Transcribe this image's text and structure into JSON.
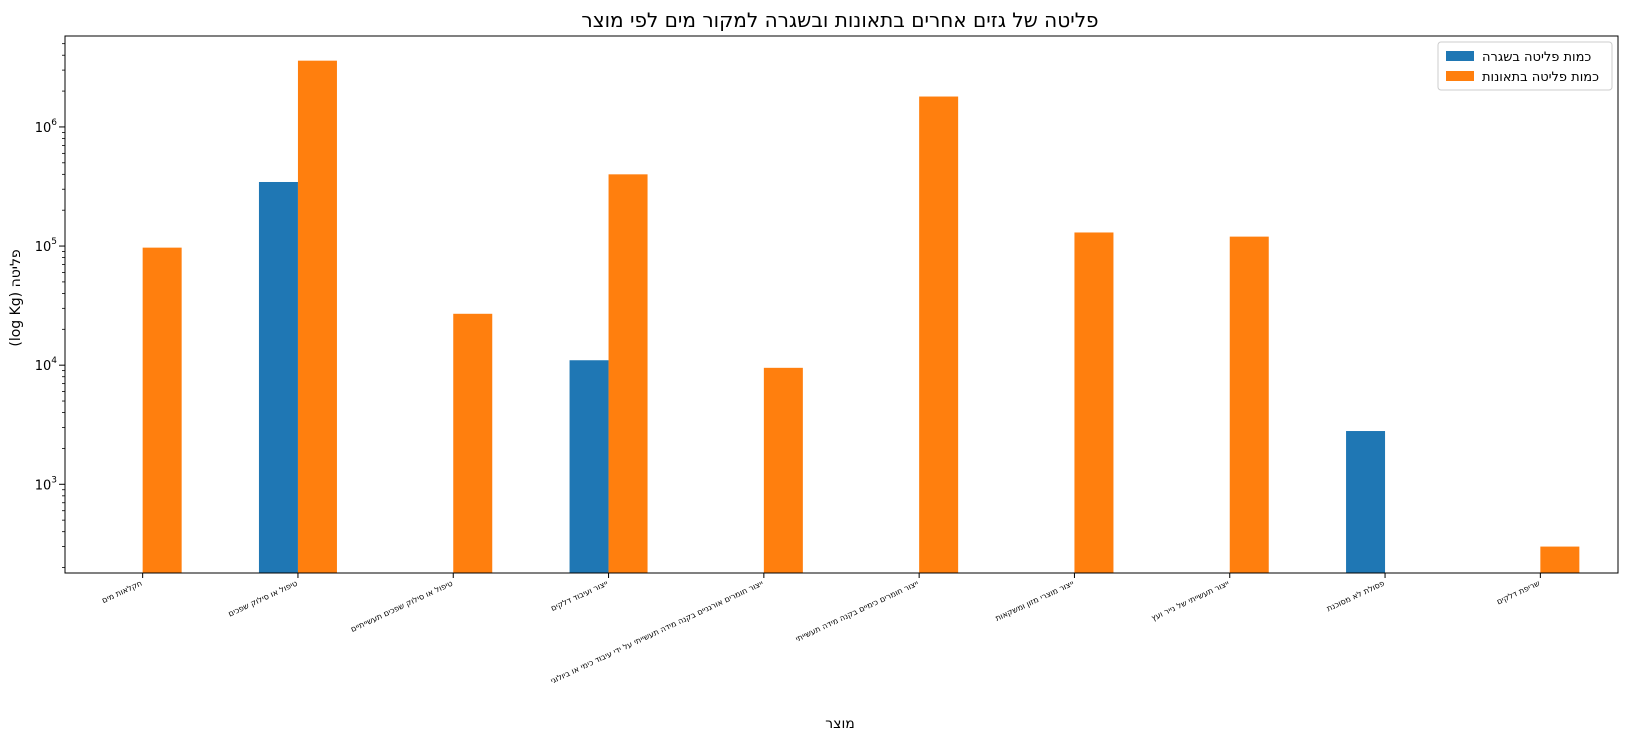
{
  "chart_data": {
    "type": "bar",
    "title": "פליטה של גזים אחרים בתאונות ובשגרה למקור מים לפי מוצר",
    "xlabel": "מוצר",
    "ylabel": "פליטה (log Kg)",
    "yscale": "log",
    "ylim": [
      180,
      5800000
    ],
    "y_ticks": [
      {
        "value": 1000,
        "base": "10",
        "exp": "3"
      },
      {
        "value": 10000,
        "base": "10",
        "exp": "4"
      },
      {
        "value": 100000,
        "base": "10",
        "exp": "5"
      },
      {
        "value": 1000000,
        "base": "10",
        "exp": "6"
      }
    ],
    "legend_position": "top-right",
    "categories": [
      "חקלאות מים",
      "טיפול או סילוק שפכים",
      "טיפול או סילוק שפכים תעשייתיים",
      "ייצור ועיבוד דלקים",
      "ייצור חומרים אורגניים בקנה מידה תעשייתי על ידי עיבוד כימי או ביולוגי",
      "ייצור חומרים כימיים בקנה מידה תעשייתי",
      "ייצור מוצרי מזון ומשקאות",
      "ייצור תעשייתי של נייר ועץ",
      "פסולת לא מסוכנת",
      "שריפת דלקים"
    ],
    "series": [
      {
        "name": "כמות פליטה בשגרה",
        "color": "#1f77b4",
        "values": [
          null,
          345000,
          null,
          11000,
          null,
          null,
          null,
          null,
          2800,
          null
        ]
      },
      {
        "name": "כמות פליטה בתאונות",
        "color": "#ff7f0e",
        "values": [
          97000,
          3600000,
          27000,
          400000,
          9500,
          1800000,
          130000,
          120000,
          null,
          300
        ]
      }
    ]
  }
}
